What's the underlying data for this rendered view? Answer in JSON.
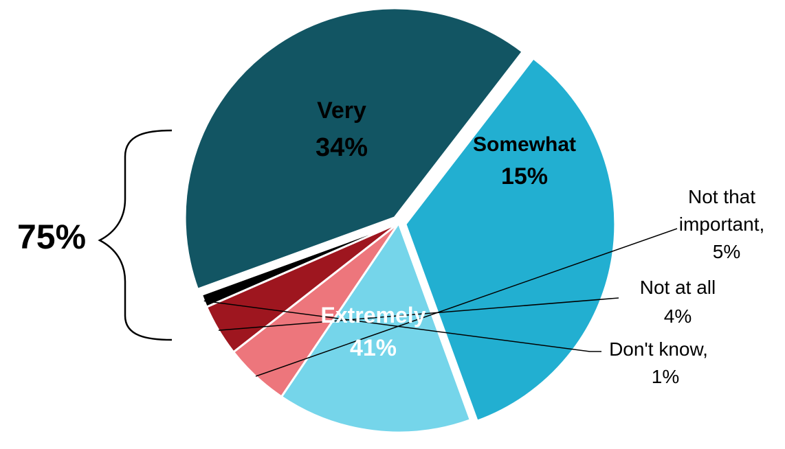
{
  "chart_data": {
    "type": "pie",
    "title": "",
    "slices": [
      {
        "key": "extremely",
        "category": "Extremely",
        "value": 41,
        "label": "41%",
        "color": "#125563",
        "text_color": "#ffffff"
      },
      {
        "key": "very",
        "category": "Very",
        "value": 34,
        "label": "34%",
        "color": "#22afd1",
        "text_color": "#000000"
      },
      {
        "key": "somewhat",
        "category": "Somewhat",
        "value": 15,
        "label": "15%",
        "color": "#75d5ea",
        "text_color": "#000000"
      },
      {
        "key": "not_that_important",
        "category": "Not that important,",
        "value": 5,
        "label": "5%",
        "color": "#ed767c",
        "text_color": "#000000"
      },
      {
        "key": "not_at_all",
        "category": "Not at all",
        "value": 4,
        "label": "4%",
        "color": "#9e161f",
        "text_color": "#000000"
      },
      {
        "key": "dont_know",
        "category": "Don't know,",
        "value": 1,
        "label": "1%",
        "color": "#000000",
        "text_color": "#000000"
      }
    ],
    "exploded": [
      "extremely",
      "very"
    ],
    "annotation": {
      "text": "75%",
      "brackets": [
        "very",
        "extremely"
      ]
    }
  }
}
